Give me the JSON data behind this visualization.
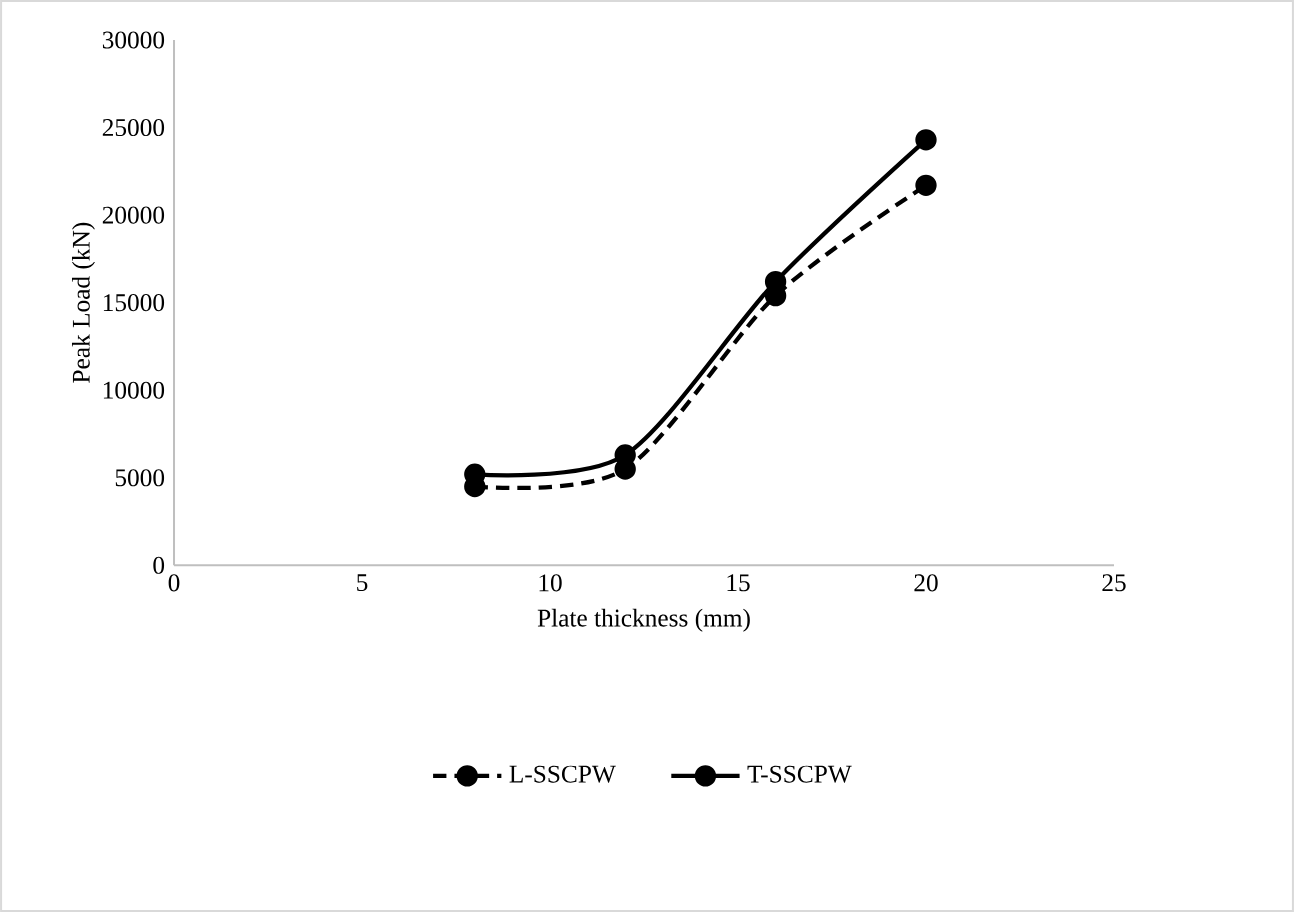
{
  "chart_data": {
    "type": "line",
    "xlabel": "Plate thickness (mm)",
    "ylabel": "Peak  Load (kN)",
    "x": [
      8,
      12,
      16,
      20
    ],
    "series": [
      {
        "name": "L-SSCPW",
        "color": "#000000",
        "values": [
          4500,
          5500,
          15400,
          21700
        ],
        "line_style": "dashed"
      },
      {
        "name": "T-SSCPW",
        "color": "#000000",
        "values": [
          5200,
          6300,
          16200,
          24300
        ],
        "line_style": "solid"
      }
    ],
    "xlim": [
      0,
      25
    ],
    "xticks": [
      0,
      5,
      10,
      15,
      20,
      25
    ],
    "ylim": [
      0,
      30000
    ],
    "yticks": [
      0,
      5000,
      10000,
      15000,
      20000,
      25000,
      30000
    ],
    "marker": "circle",
    "legend": "bottom",
    "grid": false
  }
}
